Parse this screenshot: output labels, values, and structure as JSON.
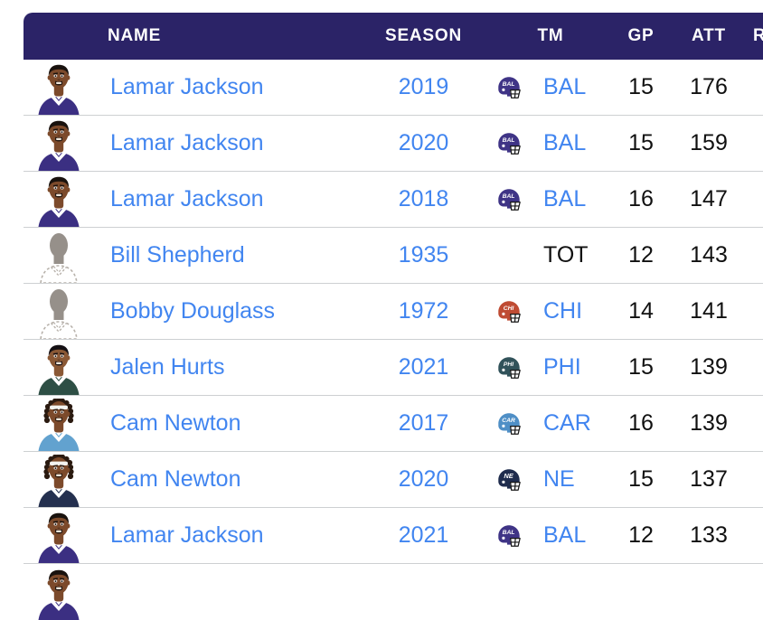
{
  "table": {
    "header": {
      "name": "NAME",
      "season": "SEASON",
      "tm": "TM",
      "gp": "GP",
      "att": "ATT",
      "r": "R"
    },
    "rows": [
      {
        "name": "Lamar Jackson",
        "season": "2019",
        "team": "BAL",
        "gp": "15",
        "att": "176",
        "helmet": {
          "abbr": "BAL",
          "color": "#3f3486"
        },
        "avatar": "lamar"
      },
      {
        "name": "Lamar Jackson",
        "season": "2020",
        "team": "BAL",
        "gp": "15",
        "att": "159",
        "helmet": {
          "abbr": "BAL",
          "color": "#3f3486"
        },
        "avatar": "lamar"
      },
      {
        "name": "Lamar Jackson",
        "season": "2018",
        "team": "BAL",
        "gp": "16",
        "att": "147",
        "helmet": {
          "abbr": "BAL",
          "color": "#3f3486"
        },
        "avatar": "lamar"
      },
      {
        "name": "Bill Shepherd",
        "season": "1935",
        "team": "TOT",
        "gp": "12",
        "att": "143",
        "helmet": null,
        "avatar": "generic"
      },
      {
        "name": "Bobby Douglass",
        "season": "1972",
        "team": "CHI",
        "gp": "14",
        "att": "141",
        "helmet": {
          "abbr": "CHI",
          "color": "#bf4b33"
        },
        "avatar": "generic"
      },
      {
        "name": "Jalen Hurts",
        "season": "2021",
        "team": "PHI",
        "gp": "15",
        "att": "139",
        "helmet": {
          "abbr": "PHI",
          "color": "#31525a"
        },
        "avatar": "hurts"
      },
      {
        "name": "Cam Newton",
        "season": "2017",
        "team": "CAR",
        "gp": "16",
        "att": "139",
        "helmet": {
          "abbr": "CAR",
          "color": "#4f8fc6"
        },
        "avatar": "cam_car"
      },
      {
        "name": "Cam Newton",
        "season": "2020",
        "team": "NE",
        "gp": "15",
        "att": "137",
        "helmet": {
          "abbr": "NE",
          "color": "#1f2c4d"
        },
        "avatar": "cam_ne"
      },
      {
        "name": "Lamar Jackson",
        "season": "2021",
        "team": "BAL",
        "gp": "12",
        "att": "133",
        "helmet": {
          "abbr": "BAL",
          "color": "#3f3486"
        },
        "avatar": "lamar"
      }
    ],
    "partial_row": {
      "avatar": "lamar"
    }
  },
  "avatars": {
    "lamar": {
      "style": "short",
      "skin": "#7c4a2b",
      "hair": "#19120e",
      "jersey": "#3b2f82",
      "collar": "#ffffff"
    },
    "hurts": {
      "style": "short",
      "skin": "#8a5835",
      "hair": "#141014",
      "jersey": "#2e4f45",
      "collar": "#ffffff"
    },
    "cam_car": {
      "style": "dreads",
      "skin": "#7c4a2b",
      "hair": "#2a1a10",
      "jersey": "#62a2cf",
      "collar": "#ffffff"
    },
    "cam_ne": {
      "style": "dreads",
      "skin": "#7c4a2b",
      "hair": "#2a1a10",
      "jersey": "#24304f",
      "collar": "#ffffff"
    },
    "generic": {
      "style": "silhouette",
      "skin": "#96908a"
    }
  },
  "colors": {
    "header_bg": "#2b2367",
    "header_text": "#ffffff",
    "link_blue": "#4185f0",
    "text_dark": "#101010",
    "divider": "#cdd0d2"
  }
}
